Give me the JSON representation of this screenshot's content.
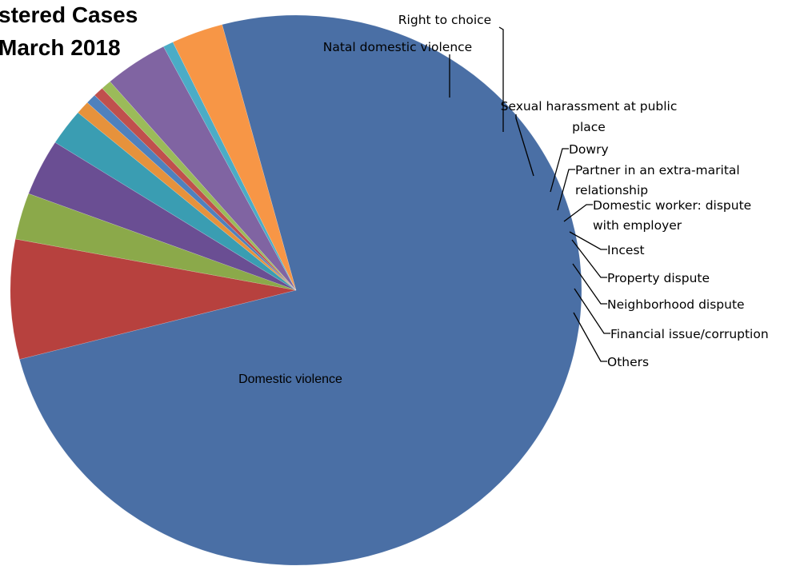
{
  "chart_data": {
    "type": "pie",
    "title_lines": [
      "stered Cases",
      "March 2018"
    ],
    "categories": [
      "Domestic violence",
      "Natal domestic violence",
      "Right to choice",
      "Sexual harassment at public place",
      "Dowry",
      "Partner in an extra-marital relationship",
      "Domestic worker: dispute with employer",
      "Incest",
      "Property dispute",
      "Neighborhood dispute",
      "Financial issue/corruption",
      "Others"
    ],
    "values": [
      77.0,
      7.2,
      2.8,
      3.4,
      2.2,
      0.8,
      0.6,
      0.6,
      0.6,
      3.7,
      0.6,
      3.0
    ],
    "colors": [
      "#4A6FA5",
      "#B7413E",
      "#8BA94A",
      "#6A4E93",
      "#3A9DB2",
      "#E6923C",
      "#4F81BD",
      "#C0504D",
      "#9BBB59",
      "#8064A2",
      "#4BACC6",
      "#F79646"
    ],
    "label_lines": [
      [
        "Domestic violence"
      ],
      [
        "Natal domestic violence"
      ],
      [
        "Right to choice"
      ],
      [
        "Sexual harassment at public",
        "place"
      ],
      [
        "Dowry"
      ],
      [
        "Partner in an extra-marital",
        "relationship"
      ],
      [
        "Domestic worker: dispute",
        "with employer"
      ],
      [
        "Incest"
      ],
      [
        "Property dispute"
      ],
      [
        "Neighborhood dispute"
      ],
      [
        "Financial issue/corruption"
      ],
      [
        "Others"
      ]
    ],
    "legend": "none",
    "data_labels": "category names with leader lines"
  }
}
